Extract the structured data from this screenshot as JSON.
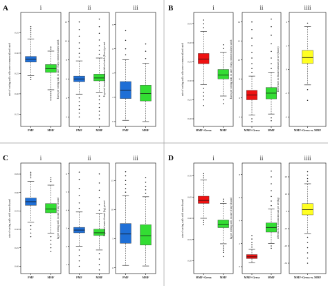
{
  "chart_data": [
    {
      "type": "box",
      "panel_letter": "A",
      "subplots": [
        {
          "numeral": "i",
          "ylabel": "rate of sorting walls with some commercialized catch",
          "yticks": [
            "0.35",
            "0.30",
            "0.25",
            "0.20",
            "0.15"
          ],
          "ylim": [
            0.12,
            0.4
          ],
          "categories": [
            "PMF",
            "MMF"
          ],
          "boxes": [
            {
              "label": "PMF",
              "color": "#1f6fd6",
              "q1": 0.278,
              "median": 0.285,
              "q3": 0.292,
              "whisker_low": 0.245,
              "whisker_high": 0.335,
              "outliers": [
                0.24,
                0.235,
                0.34,
                0.345,
                0.35,
                0.355,
                0.36,
                0.365
              ]
            },
            {
              "label": "MMF",
              "color": "#33dd33",
              "q1": 0.253,
              "median": 0.262,
              "q3": 0.272,
              "whisker_low": 0.21,
              "whisker_high": 0.305,
              "outliers": [
                0.205,
                0.2,
                0.195,
                0.19,
                0.185,
                0.31,
                0.315
              ]
            }
          ]
        },
        {
          "numeral": "ii",
          "ylabel": "Euros per sorting wall, in case of any commercialized catch",
          "yticks": [
            "12",
            "10",
            "8",
            "6",
            "4",
            "2"
          ],
          "ylim": [
            1,
            13
          ],
          "categories": [
            "PMF",
            "MMF"
          ],
          "boxes": [
            {
              "label": "PMF",
              "color": "#1f6fd6",
              "q1": 5.7,
              "median": 6.0,
              "q3": 6.3,
              "whisker_low": 4.4,
              "whisker_high": 7.9,
              "outliers": [
                4.0,
                3.6,
                3.2,
                2.8,
                2.4,
                2.0,
                8.3,
                8.7,
                9.2,
                9.8,
                10.5,
                11.2,
                12.0
              ]
            },
            {
              "label": "MMF",
              "color": "#33dd33",
              "q1": 5.8,
              "median": 6.1,
              "q3": 6.5,
              "whisker_low": 4.6,
              "whisker_high": 8.2,
              "outliers": [
                4.2,
                3.8,
                3.4,
                3.0,
                2.6,
                2.2,
                1.8,
                8.6,
                9.0,
                9.5,
                10.1,
                10.8,
                11.5,
                12.3
              ]
            }
          ]
        },
        {
          "numeral": "iii",
          "ylabel": "Expected income commercialized catch (Euros) per net",
          "yticks": [
            "8",
            "6",
            "4",
            "2",
            "0"
          ],
          "ylim": [
            -0.4,
            9
          ],
          "categories": [
            "PMF",
            "MMF"
          ],
          "boxes": [
            {
              "label": "PMF",
              "color": "#1f6fd6",
              "q1": 1.9,
              "median": 2.6,
              "q3": 3.3,
              "whisker_low": 0.1,
              "whisker_high": 5.1,
              "outliers": [
                5.5,
                6.0,
                6.7,
                7.5
              ]
            },
            {
              "label": "MMF",
              "color": "#33dd33",
              "q1": 1.7,
              "median": 2.3,
              "q3": 3.0,
              "whisker_low": 0.0,
              "whisker_high": 4.8,
              "outliers": [
                5.2,
                5.8,
                6.4
              ]
            }
          ]
        }
      ]
    },
    {
      "type": "box",
      "panel_letter": "B",
      "subplots": [
        {
          "numeral": "i",
          "ylabel": "rate of sorting walls with some commercialized catch",
          "yticks": [
            "0.45",
            "0.40",
            "0.35",
            "0.30",
            "0.25",
            "0.20"
          ],
          "ylim": [
            0.18,
            0.48
          ],
          "categories": [
            "MMF+Greca",
            "MMF"
          ],
          "boxes": [
            {
              "label": "MMF+Greca",
              "color": "#ee1111",
              "q1": 0.345,
              "median": 0.357,
              "q3": 0.372,
              "whisker_low": 0.29,
              "whisker_high": 0.43,
              "outliers": [
                0.28,
                0.27,
                0.26,
                0.25,
                0.235,
                0.44,
                0.45,
                0.46
              ]
            },
            {
              "label": "MMF",
              "color": "#33dd33",
              "q1": 0.305,
              "median": 0.315,
              "q3": 0.33,
              "whisker_low": 0.26,
              "whisker_high": 0.375,
              "outliers": [
                0.25,
                0.24,
                0.385,
                0.395
              ]
            }
          ]
        },
        {
          "numeral": "ii",
          "ylabel": "Euros per sorting wall, in case of any commercialized catch",
          "yticks": [
            "14",
            "12",
            "10",
            "8",
            "6",
            "4"
          ],
          "ylim": [
            3,
            15
          ],
          "categories": [
            "MMF+Greca",
            "MMF"
          ],
          "boxes": [
            {
              "label": "MMF+Greca",
              "color": "#ee1111",
              "q1": 5.8,
              "median": 6.3,
              "q3": 6.8,
              "whisker_low": 4.2,
              "whisker_high": 8.3,
              "outliers": [
                8.7,
                9.1,
                9.6,
                10.2,
                10.8,
                11.5,
                12.3,
                13.2,
                14.0,
                3.8,
                3.5
              ]
            },
            {
              "label": "MMF",
              "color": "#33dd33",
              "q1": 5.9,
              "median": 6.5,
              "q3": 7.1,
              "whisker_low": 4.3,
              "whisker_high": 8.7,
              "outliers": [
                9.1,
                9.6,
                10.2,
                10.9,
                11.7,
                12.6,
                13.5,
                14.3,
                3.9,
                3.6
              ]
            }
          ]
        },
        {
          "numeral": "iiii",
          "ylabel": "Differences in discard amount per net (Euros)",
          "yticks": [
            "4",
            "2",
            "0",
            "-2",
            "-4"
          ],
          "ylim": [
            -4.8,
            4.8
          ],
          "categories": [
            "MMF+Greca vs. MMF"
          ],
          "boxes": [
            {
              "label": "MMF+Greca vs. MMF",
              "color": "#ffff22",
              "q1": 0.5,
              "median": 1.0,
              "q3": 1.6,
              "whisker_low": -1.3,
              "whisker_high": 3.6,
              "outliers": [
                -1.7,
                -2.6,
                3.9
              ]
            }
          ]
        }
      ]
    },
    {
      "type": "box",
      "panel_letter": "C",
      "subplots": [
        {
          "numeral": "i",
          "ylabel": "rate of sorting walls with some discard",
          "yticks": [
            "0.65",
            "0.60",
            "0.55",
            "0.50",
            "0.45",
            "0.40"
          ],
          "ylim": [
            0.38,
            0.68
          ],
          "categories": [
            "PMF",
            "MMF"
          ],
          "boxes": [
            {
              "label": "PMF",
              "color": "#1f6fd6",
              "q1": 0.565,
              "median": 0.575,
              "q3": 0.585,
              "whisker_low": 0.52,
              "whisker_high": 0.63,
              "outliers": [
                0.51,
                0.5,
                0.49,
                0.48,
                0.64,
                0.645,
                0.65,
                0.655
              ]
            },
            {
              "label": "MMF",
              "color": "#33dd33",
              "q1": 0.545,
              "median": 0.555,
              "q3": 0.57,
              "whisker_low": 0.49,
              "whisker_high": 0.62,
              "outliers": [
                0.48,
                0.47,
                0.46,
                0.45,
                0.44,
                0.63,
                0.635,
                0.64
              ]
            }
          ]
        },
        {
          "numeral": "ii",
          "ylabel": "kg per sorting wall, in case of any discard",
          "yticks": [
            "6",
            "5",
            "4",
            "3",
            "2",
            "1"
          ],
          "ylim": [
            0.5,
            6.6
          ],
          "categories": [
            "PMF",
            "MMF"
          ],
          "boxes": [
            {
              "label": "PMF",
              "color": "#1f6fd6",
              "q1": 2.75,
              "median": 2.9,
              "q3": 3.05,
              "whisker_low": 2.0,
              "whisker_high": 3.9,
              "outliers": [
                4.1,
                4.4,
                4.8,
                5.2,
                5.7,
                6.1,
                1.8,
                1.5,
                1.2,
                0.9
              ]
            },
            {
              "label": "MMF",
              "color": "#33dd33",
              "q1": 2.6,
              "median": 2.75,
              "q3": 2.95,
              "whisker_low": 1.8,
              "whisker_high": 3.8,
              "outliers": [
                4.0,
                4.3,
                4.7,
                5.1,
                5.5,
                6.0,
                1.6,
                1.3,
                1.0,
                0.7
              ]
            }
          ]
        },
        {
          "numeral": "iii",
          "ylabel": "Expected waste discard (kg) per net",
          "yticks": [
            "15",
            "10",
            "5",
            "0"
          ],
          "ylim": [
            -1,
            18
          ],
          "categories": [
            "PMF",
            "MMF"
          ],
          "boxes": [
            {
              "label": "PMF",
              "color": "#1f6fd6",
              "q1": 4.2,
              "median": 5.8,
              "q3": 7.6,
              "whisker_low": 0.4,
              "whisker_high": 12.4,
              "outliers": [
                13.0,
                13.6,
                14.3,
                15.0,
                15.8,
                16.5
              ]
            },
            {
              "label": "MMF",
              "color": "#33dd33",
              "q1": 3.9,
              "median": 5.5,
              "q3": 7.4,
              "whisker_low": 0.3,
              "whisker_high": 12.2,
              "outliers": [
                12.8,
                13.4,
                14.0,
                14.7,
                15.5
              ]
            }
          ]
        }
      ]
    },
    {
      "type": "box",
      "panel_letter": "D",
      "subplots": [
        {
          "numeral": "i",
          "ylabel": "rate of sorting walls with some discard",
          "yticks": [
            "0.70",
            "0.65",
            "0.60",
            "0.55",
            "0.50"
          ],
          "ylim": [
            0.47,
            0.73
          ],
          "categories": [
            "MMF+Greca",
            "MMF"
          ],
          "boxes": [
            {
              "label": "MMF+Greca",
              "color": "#ee1111",
              "q1": 0.635,
              "median": 0.642,
              "q3": 0.652,
              "whisker_low": 0.6,
              "whisker_high": 0.69,
              "outliers": [
                0.595,
                0.59,
                0.585,
                0.695,
                0.7,
                0.705
              ]
            },
            {
              "label": "MMF",
              "color": "#33dd33",
              "q1": 0.578,
              "median": 0.586,
              "q3": 0.596,
              "whisker_low": 0.54,
              "whisker_high": 0.635,
              "outliers": [
                0.535,
                0.53,
                0.525,
                0.52,
                0.51,
                0.64,
                0.645
              ]
            }
          ]
        },
        {
          "numeral": "ii",
          "ylabel": "kg per sorting wall, in case of any discard",
          "yticks": [
            "8",
            "6",
            "4",
            "2",
            "0"
          ],
          "ylim": [
            -0.6,
            9
          ],
          "categories": [
            "MMF+Greca",
            "MMF"
          ],
          "boxes": [
            {
              "label": "MMF+Greca",
              "color": "#ee1111",
              "q1": 0.7,
              "median": 0.85,
              "q3": 1.05,
              "whisker_low": 0.35,
              "whisker_high": 1.5,
              "outliers": [
                1.7,
                1.9,
                2.1,
                2.4,
                2.7
              ]
            },
            {
              "label": "MMF",
              "color": "#33dd33",
              "q1": 3.0,
              "median": 3.4,
              "q3": 3.8,
              "whisker_low": 2.0,
              "whisker_high": 5.0,
              "outliers": [
                5.3,
                5.7,
                6.1,
                6.6,
                7.2,
                7.8,
                8.3,
                1.8,
                1.6
              ]
            }
          ]
        },
        {
          "numeral": "iiii",
          "ylabel": "differences in discard amount per net (kg)",
          "yticks": [
            "20",
            "10",
            "0",
            "-10",
            "-20",
            "-30"
          ],
          "ylim": [
            -36,
            28
          ],
          "categories": [
            "MMF+Greca vs. MMF"
          ],
          "boxes": [
            {
              "label": "MMF+Greca vs. MMF",
              "color": "#ffff22",
              "q1": -2.0,
              "median": 1.0,
              "q3": 4.5,
              "whisker_low": -13.0,
              "whisker_high": 16.0,
              "outliers": [
                17.5,
                19.0,
                21.0,
                23.0,
                -15.0,
                -18.0,
                -21.0,
                -24.0,
                -27.0,
                -30.0
              ]
            }
          ]
        }
      ]
    }
  ]
}
